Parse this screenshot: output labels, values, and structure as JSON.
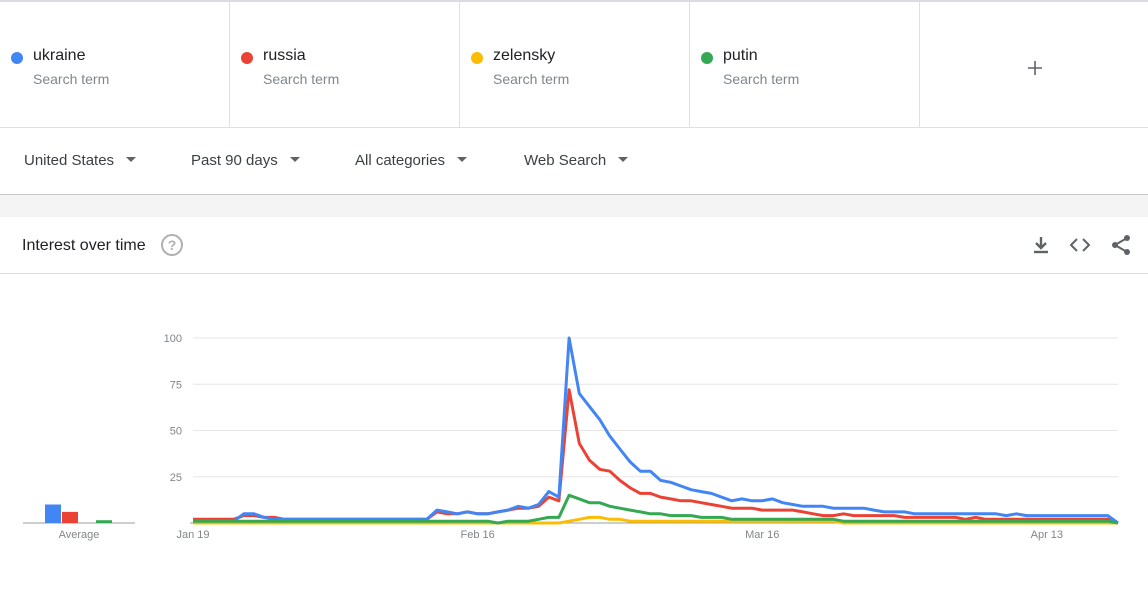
{
  "terms": [
    {
      "name": "ukraine",
      "sub": "Search term",
      "color": "#4285f4"
    },
    {
      "name": "russia",
      "sub": "Search term",
      "color": "#ea4335"
    },
    {
      "name": "zelensky",
      "sub": "Search term",
      "color": "#fbbc04"
    },
    {
      "name": "putin",
      "sub": "Search term",
      "color": "#34a853"
    }
  ],
  "add_icon": "plus-icon",
  "filters": {
    "region": "United States",
    "time": "Past 90 days",
    "category": "All categories",
    "search_type": "Web Search"
  },
  "card": {
    "title": "Interest over time",
    "help_glyph": "?",
    "icons": [
      "download-icon",
      "embed-code-icon",
      "share-icon"
    ]
  },
  "chart_data": {
    "type": "line",
    "ylim": [
      0,
      100
    ],
    "yticks": [
      "100",
      "75",
      "50",
      "25"
    ],
    "xticks": [
      {
        "label": "Jan 19",
        "index": 0
      },
      {
        "label": "Feb 16",
        "index": 28
      },
      {
        "label": "Mar 16",
        "index": 56
      },
      {
        "label": "Apr 13",
        "index": 84
      }
    ],
    "average": {
      "label": "Average",
      "values": [
        10,
        6,
        0,
        1.5
      ]
    },
    "series": [
      {
        "name": "ukraine",
        "color": "#4285f4",
        "values": [
          1,
          1,
          1,
          1,
          1,
          5,
          5,
          3,
          2,
          2,
          2,
          2,
          2,
          2,
          2,
          2,
          2,
          2,
          2,
          2,
          2,
          2,
          2,
          2,
          7,
          6,
          5,
          6,
          5,
          5,
          6,
          7,
          9,
          8,
          10,
          17,
          14,
          100,
          70,
          63,
          56,
          47,
          40,
          33,
          28,
          28,
          23,
          22,
          20,
          18,
          17,
          16,
          14,
          12,
          13,
          12,
          12,
          13,
          11,
          10,
          9,
          9,
          9,
          8,
          8,
          8,
          8,
          7,
          6,
          6,
          6,
          5,
          5,
          5,
          5,
          5,
          5,
          5,
          5,
          5,
          4,
          5,
          4,
          4,
          4,
          4,
          4,
          4,
          4,
          4,
          4,
          0
        ]
      },
      {
        "name": "russia",
        "color": "#ea4335",
        "values": [
          2,
          2,
          2,
          2,
          2,
          4,
          4,
          3,
          3,
          2,
          2,
          2,
          2,
          2,
          2,
          2,
          2,
          2,
          2,
          2,
          2,
          2,
          2,
          2,
          6,
          5,
          5,
          6,
          5,
          5,
          6,
          7,
          8,
          8,
          9,
          14,
          12,
          72,
          43,
          34,
          29,
          28,
          23,
          19,
          16,
          16,
          14,
          13,
          12,
          12,
          11,
          10,
          9,
          8,
          8,
          8,
          7,
          7,
          7,
          7,
          6,
          5,
          4,
          4,
          5,
          4,
          4,
          4,
          4,
          4,
          3,
          3,
          3,
          3,
          3,
          3,
          2,
          3,
          2,
          2,
          2,
          2,
          2,
          2,
          2,
          2,
          2,
          2,
          2,
          2,
          2,
          0
        ]
      },
      {
        "name": "zelensky",
        "color": "#fbbc04",
        "values": [
          0,
          0,
          0,
          0,
          0,
          0,
          0,
          0,
          0,
          0,
          0,
          0,
          0,
          0,
          0,
          0,
          0,
          0,
          0,
          0,
          0,
          0,
          0,
          0,
          0,
          0,
          0,
          0,
          0,
          0,
          0,
          0,
          0,
          0,
          0,
          0,
          0,
          1,
          2,
          3,
          3,
          2,
          2,
          1,
          1,
          1,
          1,
          1,
          1,
          1,
          1,
          1,
          1,
          1,
          1,
          1,
          1,
          1,
          1,
          1,
          1,
          1,
          1,
          1,
          0,
          0,
          0,
          0,
          0,
          0,
          0,
          0,
          0,
          0,
          0,
          0,
          0,
          0,
          0,
          0,
          0,
          0,
          0,
          0,
          0,
          0,
          0,
          0,
          0,
          0,
          0,
          0
        ]
      },
      {
        "name": "putin",
        "color": "#34a853",
        "values": [
          1,
          1,
          1,
          1,
          1,
          1,
          1,
          1,
          1,
          1,
          1,
          1,
          1,
          1,
          1,
          1,
          1,
          1,
          1,
          1,
          1,
          1,
          1,
          1,
          1,
          1,
          1,
          1,
          1,
          1,
          0,
          1,
          1,
          1,
          2,
          3,
          3,
          15,
          13,
          11,
          11,
          9,
          8,
          7,
          6,
          5,
          5,
          4,
          4,
          4,
          3,
          3,
          3,
          2,
          2,
          2,
          2,
          2,
          2,
          2,
          2,
          2,
          2,
          2,
          1,
          1,
          1,
          1,
          1,
          1,
          1,
          1,
          1,
          1,
          1,
          1,
          1,
          1,
          1,
          1,
          1,
          1,
          1,
          1,
          1,
          1,
          1,
          1,
          1,
          1,
          1,
          0
        ]
      }
    ]
  }
}
